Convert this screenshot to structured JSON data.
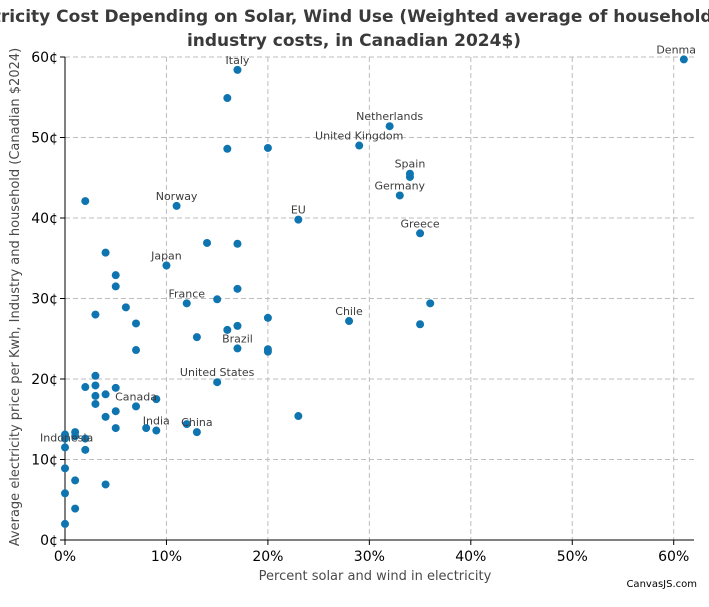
{
  "chart_data": {
    "type": "scatter",
    "title": "Electricity Cost Depending on Solar, Wind Use (Weighted average of household and industry costs, in Canadian 2024$)",
    "title_lines": [
      "Electricity Cost Depending on Solar, Wind Use (Weighted average of household and",
      "industry costs, in Canadian 2024$)"
    ],
    "xlabel": "Percent solar and wind in electricity",
    "ylabel": "Average electricity price per Kwh, Industry and household (Canadian $2024)",
    "xlim": [
      0,
      62
    ],
    "ylim": [
      0,
      60
    ],
    "x_ticks": [
      0,
      10,
      20,
      30,
      40,
      50,
      60
    ],
    "x_tick_labels": [
      "0%",
      "10%",
      "20%",
      "30%",
      "40%",
      "50%",
      "60%"
    ],
    "y_ticks": [
      0,
      10,
      20,
      30,
      40,
      50,
      60
    ],
    "y_tick_labels": [
      "0¢",
      "10¢",
      "20¢",
      "30¢",
      "40¢",
      "50¢",
      "60¢"
    ],
    "grid": true,
    "marker_color": "#0f75b0",
    "points": [
      {
        "x": 0,
        "y": 2
      },
      {
        "x": 0,
        "y": 5.8
      },
      {
        "x": 0,
        "y": 8.9
      },
      {
        "x": 0,
        "y": 11.5
      },
      {
        "x": 0,
        "y": 12.6
      },
      {
        "x": 0,
        "y": 13.1
      },
      {
        "x": 1,
        "y": 3.9
      },
      {
        "x": 1,
        "y": 7.4
      },
      {
        "x": 1,
        "y": 12.9
      },
      {
        "x": 1,
        "y": 13.4
      },
      {
        "x": 2,
        "y": 11.2
      },
      {
        "x": 2,
        "y": 12.6
      },
      {
        "x": 2,
        "y": 19
      },
      {
        "x": 2,
        "y": 42.1
      },
      {
        "x": 3,
        "y": 16.9
      },
      {
        "x": 3,
        "y": 17.9
      },
      {
        "x": 3,
        "y": 19.2
      },
      {
        "x": 3,
        "y": 20.4
      },
      {
        "x": 3,
        "y": 28
      },
      {
        "x": 4,
        "y": 6.9
      },
      {
        "x": 4,
        "y": 15.3
      },
      {
        "x": 4,
        "y": 18.1
      },
      {
        "x": 4,
        "y": 35.7
      },
      {
        "x": 5,
        "y": 13.9
      },
      {
        "x": 5,
        "y": 16
      },
      {
        "x": 5,
        "y": 18.9
      },
      {
        "x": 5,
        "y": 31.5
      },
      {
        "x": 5,
        "y": 32.9
      },
      {
        "x": 6,
        "y": 28.9
      },
      {
        "x": 7,
        "y": 16.6
      },
      {
        "x": 7,
        "y": 23.6
      },
      {
        "x": 7,
        "y": 26.9
      },
      {
        "x": 8,
        "y": 13.9
      },
      {
        "x": 9,
        "y": 13.6
      },
      {
        "x": 9,
        "y": 17.5
      },
      {
        "x": 10,
        "y": 34.1
      },
      {
        "x": 11,
        "y": 41.5
      },
      {
        "x": 12,
        "y": 14.4
      },
      {
        "x": 12,
        "y": 29.4
      },
      {
        "x": 13,
        "y": 13.4
      },
      {
        "x": 13,
        "y": 25.2
      },
      {
        "x": 14,
        "y": 36.9
      },
      {
        "x": 15,
        "y": 19.6
      },
      {
        "x": 15,
        "y": 29.9
      },
      {
        "x": 16,
        "y": 26.1
      },
      {
        "x": 16,
        "y": 48.6
      },
      {
        "x": 16,
        "y": 54.9
      },
      {
        "x": 17,
        "y": 23.8
      },
      {
        "x": 17,
        "y": 26.6
      },
      {
        "x": 17,
        "y": 31.2
      },
      {
        "x": 17,
        "y": 36.8
      },
      {
        "x": 17,
        "y": 58.4
      },
      {
        "x": 20,
        "y": 23.4
      },
      {
        "x": 20,
        "y": 23.7
      },
      {
        "x": 20,
        "y": 27.6
      },
      {
        "x": 20,
        "y": 48.7
      },
      {
        "x": 23,
        "y": 15.4
      },
      {
        "x": 23,
        "y": 39.8
      },
      {
        "x": 28,
        "y": 27.2
      },
      {
        "x": 29,
        "y": 49
      },
      {
        "x": 32,
        "y": 51.4
      },
      {
        "x": 33,
        "y": 42.8
      },
      {
        "x": 34,
        "y": 45.1
      },
      {
        "x": 34,
        "y": 45.5
      },
      {
        "x": 35,
        "y": 26.8
      },
      {
        "x": 35,
        "y": 38.1
      },
      {
        "x": 36,
        "y": 29.4
      },
      {
        "x": 61,
        "y": 59.7
      }
    ],
    "annotations": [
      {
        "text": "Italy",
        "x": 17,
        "y": 58.4
      },
      {
        "text": "Netherlands",
        "x": 32,
        "y": 51.4
      },
      {
        "text": "United Kingdom",
        "x": 29,
        "y": 49
      },
      {
        "text": "Spain",
        "x": 34,
        "y": 45.5
      },
      {
        "text": "Germany",
        "x": 33,
        "y": 42.8
      },
      {
        "text": "Norway",
        "x": 11,
        "y": 41.5
      },
      {
        "text": "EU",
        "x": 23,
        "y": 39.8
      },
      {
        "text": "Greece",
        "x": 35,
        "y": 38.1
      },
      {
        "text": "Japan",
        "x": 10,
        "y": 34.1
      },
      {
        "text": "France",
        "x": 12,
        "y": 29.4
      },
      {
        "text": "Chile",
        "x": 28,
        "y": 27.2
      },
      {
        "text": "Brazil",
        "x": 17,
        "y": 23.8
      },
      {
        "text": "United States",
        "x": 15,
        "y": 19.6
      },
      {
        "text": "Canada",
        "x": 7,
        "y": 16.6
      },
      {
        "text": "India",
        "x": 9,
        "y": 13.6
      },
      {
        "text": "China",
        "x": 13,
        "y": 13.4
      },
      {
        "text": "Indonesia",
        "x": 0,
        "y": 11.5
      },
      {
        "text": "Denma",
        "x": 61,
        "y": 59.7
      }
    ],
    "credit": "CanvasJS.com"
  }
}
